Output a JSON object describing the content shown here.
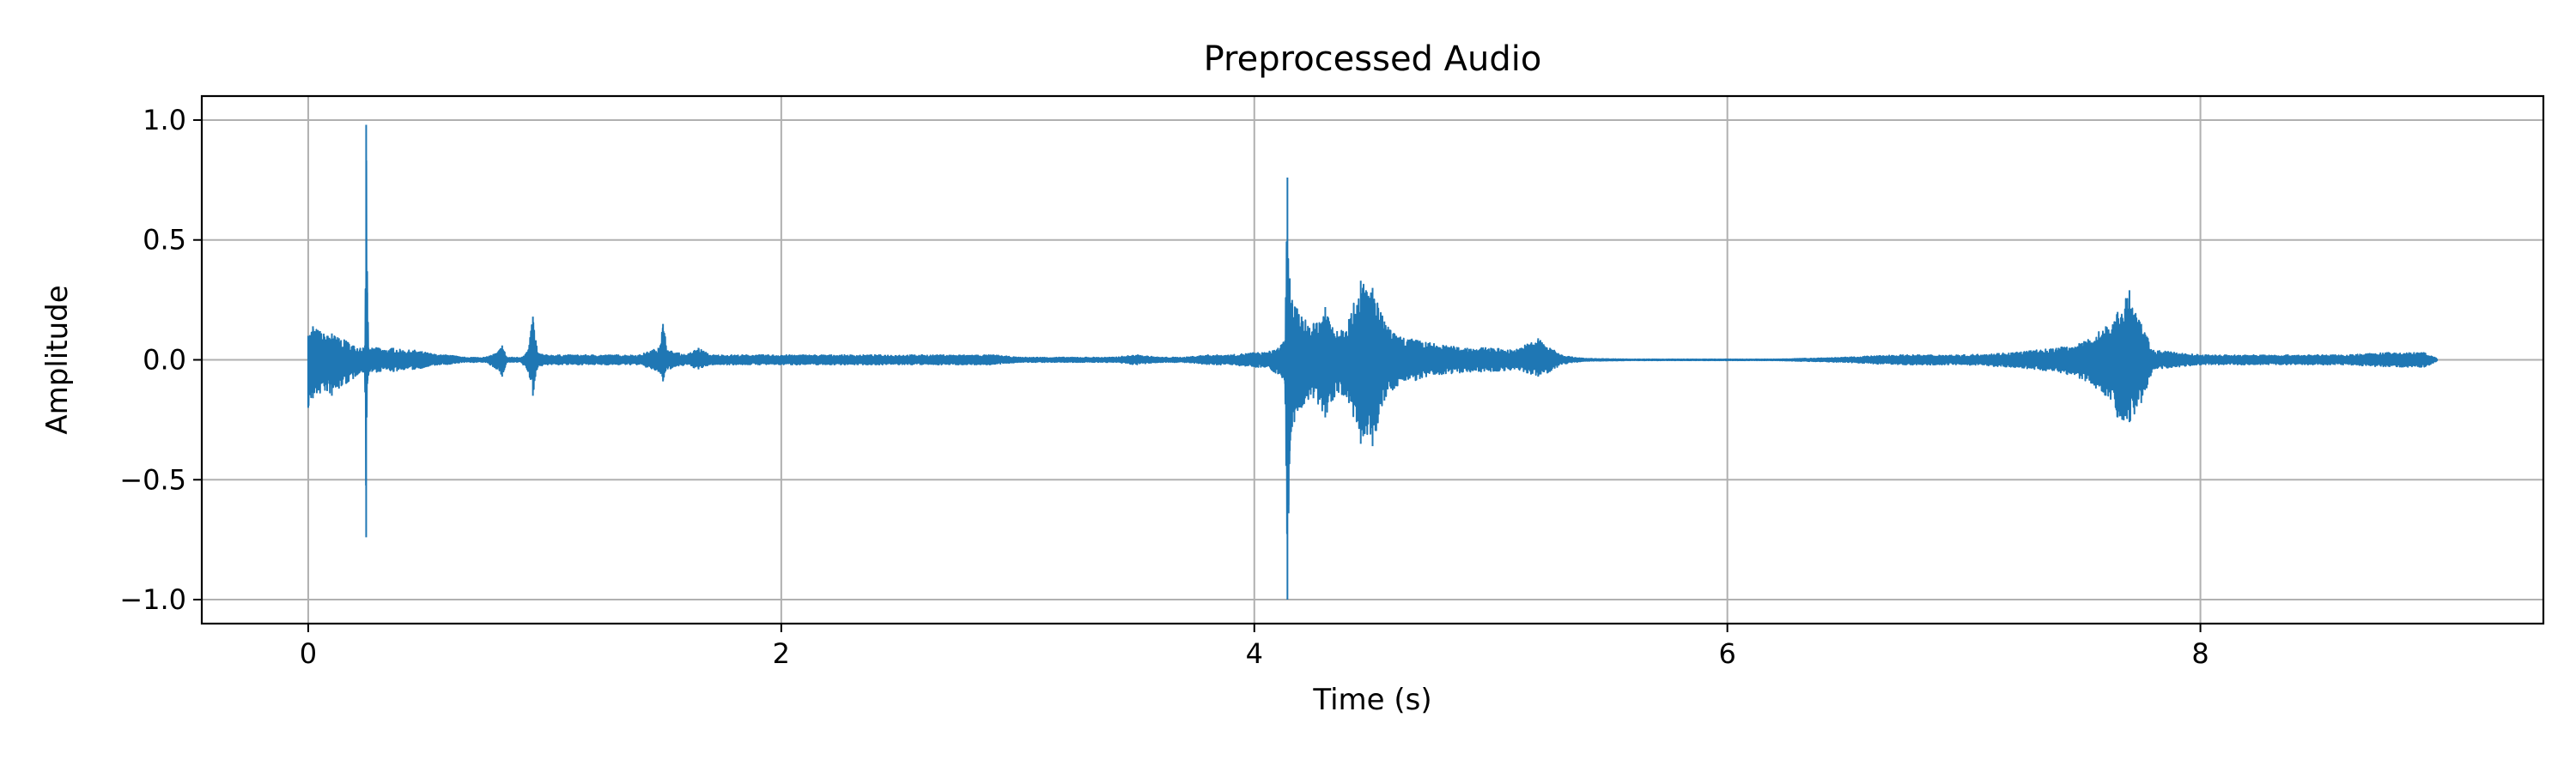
{
  "chart_data": {
    "type": "line",
    "title": "Preprocessed Audio",
    "xlabel": "Time (s)",
    "ylabel": "Amplitude",
    "xlim": [
      -0.45,
      9.45
    ],
    "ylim": [
      -1.1,
      1.1
    ],
    "x_ticks": [
      0,
      2,
      4,
      6,
      8
    ],
    "x_tick_labels": [
      "0",
      "2",
      "4",
      "6",
      "8"
    ],
    "y_ticks": [
      1.0,
      0.5,
      0.0,
      -0.5,
      -1.0
    ],
    "y_tick_labels": [
      "1.0",
      "0.5",
      "0.0",
      "−0.5",
      "−1.0"
    ],
    "grid": true,
    "line_color": "#1f77b4",
    "series": [
      {
        "x": [
          0,
          0.02,
          0.05,
          0.08,
          0.1,
          0.13,
          0.16,
          0.19,
          0.22,
          0.24,
          0.245,
          0.25,
          0.255,
          0.26,
          0.27,
          0.3,
          0.33,
          0.36,
          0.4,
          0.45,
          0.5,
          0.55,
          0.6,
          0.65,
          0.7,
          0.75,
          0.8,
          0.82,
          0.84,
          0.9,
          0.93,
          0.95,
          0.97,
          1.0,
          1.1,
          1.2,
          1.3,
          1.4,
          1.48,
          1.5,
          1.52,
          1.6,
          1.65,
          1.7,
          1.8,
          1.9,
          2.0,
          2.1,
          2.2,
          2.3,
          2.4,
          2.5,
          2.6,
          2.7,
          2.8,
          2.9,
          3.0,
          3.1,
          3.2,
          3.3,
          3.4,
          3.5,
          3.6,
          3.7,
          3.8,
          3.9,
          4.0,
          4.05,
          4.1,
          4.13,
          4.14,
          4.145,
          4.15,
          4.16,
          4.2,
          4.25,
          4.3,
          4.35,
          4.4,
          4.45,
          4.5,
          4.55,
          4.6,
          4.7,
          4.8,
          4.9,
          5.0,
          5.1,
          5.2,
          5.25,
          5.3,
          5.35,
          5.4,
          5.6,
          5.8,
          6.0,
          6.2,
          6.5,
          6.7,
          6.9,
          7.0,
          7.2,
          7.4,
          7.5,
          7.6,
          7.65,
          7.7,
          7.75,
          7.8,
          7.9,
          8.0,
          8.2,
          8.4,
          8.6,
          8.8,
          8.95,
          9.0
        ],
        "y_max": [
          0.1,
          0.14,
          0.12,
          0.1,
          0.11,
          0.09,
          0.08,
          0.06,
          0.05,
          0.06,
          0.98,
          0.28,
          0.05,
          0.04,
          0.05,
          0.05,
          0.04,
          0.05,
          0.04,
          0.04,
          0.03,
          0.02,
          0.02,
          0.01,
          0.01,
          0.01,
          0.03,
          0.06,
          0.01,
          0.01,
          0.04,
          0.18,
          0.03,
          0.02,
          0.02,
          0.02,
          0.02,
          0.02,
          0.05,
          0.15,
          0.04,
          0.02,
          0.05,
          0.02,
          0.02,
          0.02,
          0.02,
          0.02,
          0.02,
          0.02,
          0.02,
          0.02,
          0.02,
          0.02,
          0.02,
          0.02,
          0.01,
          0.01,
          0.01,
          0.01,
          0.01,
          0.02,
          0.01,
          0.01,
          0.02,
          0.02,
          0.03,
          0.03,
          0.05,
          0.08,
          0.76,
          0.3,
          0.34,
          0.25,
          0.18,
          0.15,
          0.22,
          0.12,
          0.17,
          0.33,
          0.3,
          0.16,
          0.1,
          0.08,
          0.06,
          0.05,
          0.05,
          0.04,
          0.09,
          0.05,
          0.02,
          0.01,
          0.005,
          0.002,
          0.002,
          0.002,
          0.002,
          0.01,
          0.02,
          0.02,
          0.02,
          0.03,
          0.05,
          0.07,
          0.14,
          0.2,
          0.29,
          0.15,
          0.04,
          0.03,
          0.02,
          0.02,
          0.02,
          0.02,
          0.03,
          0.03,
          0.005
        ],
        "y_min": [
          -0.2,
          -0.16,
          -0.14,
          -0.13,
          -0.15,
          -0.12,
          -0.1,
          -0.08,
          -0.05,
          -0.06,
          -0.74,
          -0.1,
          -0.06,
          -0.05,
          -0.05,
          -0.05,
          -0.04,
          -0.05,
          -0.04,
          -0.04,
          -0.03,
          -0.02,
          -0.02,
          -0.01,
          -0.01,
          -0.01,
          -0.04,
          -0.07,
          -0.01,
          -0.01,
          -0.05,
          -0.15,
          -0.03,
          -0.02,
          -0.02,
          -0.02,
          -0.02,
          -0.02,
          -0.05,
          -0.09,
          -0.04,
          -0.02,
          -0.04,
          -0.02,
          -0.02,
          -0.02,
          -0.02,
          -0.02,
          -0.02,
          -0.02,
          -0.02,
          -0.02,
          -0.02,
          -0.02,
          -0.02,
          -0.02,
          -0.01,
          -0.01,
          -0.01,
          -0.01,
          -0.01,
          -0.02,
          -0.01,
          -0.01,
          -0.02,
          -0.02,
          -0.03,
          -0.03,
          -0.06,
          -0.1,
          -1.0,
          -0.64,
          -0.38,
          -0.28,
          -0.2,
          -0.16,
          -0.24,
          -0.13,
          -0.18,
          -0.35,
          -0.36,
          -0.17,
          -0.11,
          -0.08,
          -0.06,
          -0.05,
          -0.05,
          -0.04,
          -0.07,
          -0.05,
          -0.02,
          -0.01,
          -0.005,
          -0.002,
          -0.002,
          -0.002,
          -0.002,
          -0.01,
          -0.02,
          -0.02,
          -0.02,
          -0.03,
          -0.05,
          -0.08,
          -0.15,
          -0.24,
          -0.26,
          -0.18,
          -0.04,
          -0.03,
          -0.02,
          -0.02,
          -0.02,
          -0.02,
          -0.03,
          -0.03,
          -0.005
        ]
      }
    ]
  }
}
